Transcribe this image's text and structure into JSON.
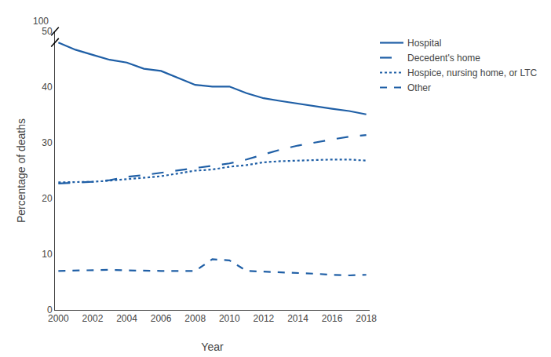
{
  "chart_data": {
    "type": "line",
    "x_label": "Year",
    "y_label": "Percentage of deaths",
    "x": [
      2000,
      2001,
      2002,
      2003,
      2004,
      2005,
      2006,
      2007,
      2008,
      2009,
      2010,
      2011,
      2012,
      2013,
      2014,
      2015,
      2016,
      2017,
      2018
    ],
    "color": "#1f5fa6",
    "series": [
      {
        "name": "Hospital",
        "line_style": "solid",
        "values": [
          48.0,
          46.7,
          45.8,
          44.9,
          44.4,
          43.3,
          42.9,
          41.7,
          40.4,
          40.1,
          40.1,
          38.9,
          38.0,
          37.5,
          37.0,
          36.6,
          36.1,
          35.7,
          35.1
        ]
      },
      {
        "name": "Decedent's home",
        "line_style": "longdash",
        "values": [
          22.7,
          22.8,
          23.0,
          23.3,
          23.9,
          24.2,
          24.6,
          25.0,
          25.5,
          25.9,
          26.3,
          27.0,
          27.9,
          28.8,
          29.5,
          30.1,
          30.6,
          31.1,
          31.4
        ]
      },
      {
        "name": "Hospice, nursing home, or LTC",
        "line_style": "dot",
        "values": [
          22.9,
          22.9,
          23.0,
          23.2,
          23.5,
          23.7,
          24.0,
          24.5,
          25.0,
          25.2,
          25.7,
          26.0,
          26.5,
          26.7,
          26.8,
          27.0,
          27.0,
          27.0,
          26.8
        ]
      },
      {
        "name": "Other",
        "line_style": "dash",
        "values": [
          7.0,
          7.1,
          7.1,
          7.2,
          7.1,
          7.0,
          7.0,
          7.0,
          7.0,
          9.1,
          8.9,
          7.0,
          6.9,
          6.8,
          6.7,
          6.5,
          6.3,
          6.2,
          6.3
        ]
      }
    ],
    "xlim": [
      1999.8,
      2018.2
    ],
    "xticks": [
      2000,
      2002,
      2004,
      2006,
      2008,
      2010,
      2012,
      2014,
      2016,
      2018
    ],
    "ylim": [
      0,
      50
    ],
    "yticks": [
      0,
      10,
      20,
      30,
      40,
      50
    ],
    "annotations": [
      "100"
    ],
    "grid": false,
    "legend": "right"
  }
}
